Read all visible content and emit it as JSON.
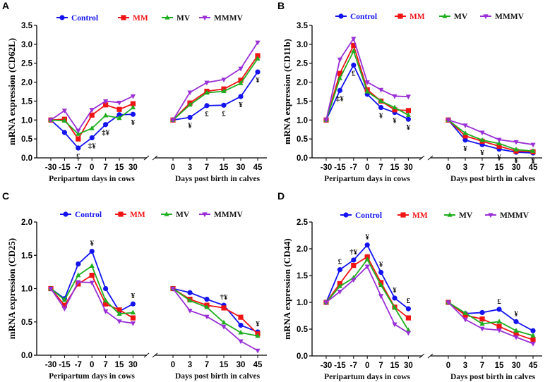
{
  "colors": {
    "Control": "#1414f0",
    "MM": "#f01414",
    "MV": "#1fae1f",
    "MMMV": "#9a2fd6",
    "annotation": "#111111"
  },
  "legend": [
    {
      "name": "Control",
      "marker": "circle"
    },
    {
      "name": "MM",
      "marker": "square"
    },
    {
      "name": "MV",
      "marker": "triangle-up"
    },
    {
      "name": "MMMV",
      "marker": "triangle-down"
    }
  ],
  "chart_data": [
    {
      "panel": "A",
      "type": "line",
      "ylabel": "mRNA expression (CD62L)",
      "ylim": [
        0,
        3.5
      ],
      "yticks": [
        0.0,
        0.5,
        1.0,
        1.5,
        2.0,
        2.5,
        3.0,
        3.5
      ],
      "cows": {
        "xlabel": "Peripartum days in cows",
        "categories": [
          "-30",
          "-15",
          "-7",
          "0",
          "7",
          "15",
          "30"
        ]
      },
      "calves": {
        "xlabel": "Days post birth in calves",
        "categories": [
          "0",
          "3",
          "7",
          "15",
          "30",
          "45"
        ]
      },
      "series": [
        {
          "name": "Control",
          "cows": [
            1.0,
            0.67,
            0.26,
            0.53,
            0.88,
            1.14,
            1.15
          ],
          "calves": [
            1.0,
            1.07,
            1.38,
            1.39,
            1.62,
            2.27
          ]
        },
        {
          "name": "MM",
          "cows": [
            1.0,
            1.02,
            0.5,
            1.13,
            1.4,
            1.28,
            1.43
          ],
          "calves": [
            1.0,
            1.45,
            1.76,
            1.82,
            2.05,
            2.7
          ]
        },
        {
          "name": "MV",
          "cows": [
            1.0,
            0.98,
            0.63,
            0.78,
            1.12,
            1.05,
            1.33
          ],
          "calves": [
            1.0,
            1.4,
            1.72,
            1.76,
            1.97,
            2.62
          ]
        },
        {
          "name": "MMMV",
          "cows": [
            1.0,
            1.25,
            0.72,
            1.27,
            1.5,
            1.46,
            1.63
          ],
          "calves": [
            1.0,
            1.73,
            1.99,
            2.07,
            2.36,
            3.05
          ]
        }
      ],
      "annotations": [
        {
          "group": "cows",
          "x": "-7",
          "text": "£",
          "pos": "below",
          "y": 0.26
        },
        {
          "group": "cows",
          "x": "0",
          "text": "‡¥",
          "pos": "below",
          "y": 0.53
        },
        {
          "group": "cows",
          "x": "7",
          "text": "‡¥",
          "pos": "below",
          "y": 0.88
        },
        {
          "group": "cows",
          "x": "30",
          "text": "¥",
          "pos": "below",
          "y": 1.15
        },
        {
          "group": "calves",
          "x": "3",
          "text": "¥",
          "pos": "below",
          "y": 1.07
        },
        {
          "group": "calves",
          "x": "7",
          "text": "£",
          "pos": "below",
          "y": 1.38
        },
        {
          "group": "calves",
          "x": "15",
          "text": "£",
          "pos": "below",
          "y": 1.39
        },
        {
          "group": "calves",
          "x": "30",
          "text": "¥",
          "pos": "below",
          "y": 1.62
        },
        {
          "group": "calves",
          "x": "45",
          "text": "¥",
          "pos": "below",
          "y": 2.27
        }
      ]
    },
    {
      "panel": "B",
      "type": "line",
      "ylabel": "mRNA expression (CD11b)",
      "ylim": [
        0,
        3.5
      ],
      "yticks": [
        0.0,
        0.5,
        1.0,
        1.5,
        2.0,
        2.5,
        3.0,
        3.5
      ],
      "cows": {
        "xlabel": "Peripartum days in cows",
        "categories": [
          "-30",
          "-15",
          "-7",
          "0",
          "7",
          "15",
          "30"
        ]
      },
      "calves": {
        "xlabel": "Days post birth in calves",
        "categories": [
          "0",
          "3",
          "7",
          "15",
          "30",
          "45"
        ]
      },
      "series": [
        {
          "name": "Control",
          "cows": [
            1.0,
            1.78,
            2.45,
            1.68,
            1.33,
            1.2,
            1.02
          ],
          "calves": [
            1.0,
            0.47,
            0.35,
            0.23,
            0.15,
            0.13
          ]
        },
        {
          "name": "MM",
          "cows": [
            1.0,
            2.23,
            2.97,
            1.8,
            1.5,
            1.27,
            1.25
          ],
          "calves": [
            1.0,
            0.58,
            0.44,
            0.31,
            0.18,
            0.16
          ]
        },
        {
          "name": "MV",
          "cows": [
            1.0,
            2.1,
            2.82,
            1.75,
            1.5,
            1.33,
            1.13
          ],
          "calves": [
            1.0,
            0.65,
            0.47,
            0.38,
            0.22,
            0.18
          ]
        },
        {
          "name": "MMMV",
          "cows": [
            1.0,
            2.6,
            3.15,
            2.0,
            1.8,
            1.63,
            1.62
          ],
          "calves": [
            1.0,
            0.86,
            0.67,
            0.48,
            0.42,
            0.35
          ]
        }
      ],
      "annotations": [
        {
          "group": "cows",
          "x": "-15",
          "text": "‡¥",
          "pos": "below",
          "y": 1.78
        },
        {
          "group": "cows",
          "x": "-7",
          "text": "£",
          "pos": "below",
          "y": 2.45
        },
        {
          "group": "cows",
          "x": "7",
          "text": "¥",
          "pos": "below",
          "y": 1.33
        },
        {
          "group": "cows",
          "x": "15",
          "text": "¥",
          "pos": "below",
          "y": 1.2
        },
        {
          "group": "cows",
          "x": "30",
          "text": "¥",
          "pos": "below",
          "y": 1.02
        },
        {
          "group": "calves",
          "x": "3",
          "text": "¥",
          "pos": "below",
          "y": 0.47
        },
        {
          "group": "calves",
          "x": "7",
          "text": "¥",
          "pos": "below",
          "y": 0.35
        },
        {
          "group": "calves",
          "x": "15",
          "text": "¥",
          "pos": "below",
          "y": 0.23
        },
        {
          "group": "calves",
          "x": "30",
          "text": "¥",
          "pos": "below",
          "y": 0.15
        },
        {
          "group": "calves",
          "x": "45",
          "text": "¥",
          "pos": "below",
          "y": 0.13
        }
      ]
    },
    {
      "panel": "C",
      "type": "line",
      "ylabel": "mRNA expression (CD25)",
      "ylim": [
        0,
        2.0
      ],
      "yticks": [
        0.0,
        0.5,
        1.0,
        1.5,
        2.0
      ],
      "cows": {
        "xlabel": "Peripartum days in cows",
        "categories": [
          "-30",
          "-15",
          "-7",
          "0",
          "7",
          "15",
          "30"
        ]
      },
      "calves": {
        "xlabel": "Days post birth in calves",
        "categories": [
          "0",
          "3",
          "7",
          "15",
          "30",
          "45"
        ]
      },
      "series": [
        {
          "name": "Control",
          "cows": [
            1.0,
            0.85,
            1.37,
            1.56,
            1.0,
            0.66,
            0.77
          ],
          "calves": [
            1.0,
            0.94,
            0.84,
            0.75,
            0.45,
            0.35
          ]
        },
        {
          "name": "MM",
          "cows": [
            1.0,
            0.75,
            1.07,
            1.2,
            0.77,
            0.68,
            0.56
          ],
          "calves": [
            1.0,
            0.84,
            0.75,
            0.71,
            0.57,
            0.32
          ]
        },
        {
          "name": "MV",
          "cows": [
            1.0,
            0.83,
            1.2,
            1.34,
            0.82,
            0.62,
            0.64
          ],
          "calves": [
            1.0,
            0.82,
            0.72,
            0.49,
            0.34,
            0.29
          ]
        },
        {
          "name": "MMMV",
          "cows": [
            1.0,
            0.7,
            1.1,
            1.09,
            0.66,
            0.51,
            0.48
          ],
          "calves": [
            1.0,
            0.67,
            0.58,
            0.43,
            0.21,
            0.07
          ]
        }
      ],
      "annotations": [
        {
          "group": "cows",
          "x": "0",
          "text": "¥",
          "pos": "above",
          "y": 1.56
        },
        {
          "group": "cows",
          "x": "30",
          "text": "¥",
          "pos": "above",
          "y": 0.77
        },
        {
          "group": "calves",
          "x": "15",
          "text": "†¥",
          "pos": "above",
          "y": 0.75
        },
        {
          "group": "calves",
          "x": "45",
          "text": "¥",
          "pos": "above",
          "y": 0.35
        }
      ]
    },
    {
      "panel": "D",
      "type": "line",
      "ylabel": "mRNA expression (CD44)",
      "ylim": [
        0,
        2.5
      ],
      "yticks": [
        0.0,
        0.5,
        1.0,
        1.5,
        2.0,
        2.5
      ],
      "cows": {
        "xlabel": "Peripartum days in cows",
        "categories": [
          "-30",
          "-15",
          "-7",
          "0",
          "7",
          "15",
          "30"
        ]
      },
      "calves": {
        "xlabel": "Days post birth in calves",
        "categories": [
          "0",
          "3",
          "7",
          "15",
          "30",
          "45"
        ]
      },
      "series": [
        {
          "name": "Control",
          "cows": [
            1.0,
            1.61,
            1.79,
            2.07,
            1.56,
            1.08,
            0.88
          ],
          "calves": [
            1.0,
            0.79,
            0.81,
            0.87,
            0.64,
            0.47
          ]
        },
        {
          "name": "MM",
          "cows": [
            1.0,
            1.35,
            1.69,
            1.85,
            1.37,
            0.91,
            0.71
          ],
          "calves": [
            1.0,
            0.76,
            0.69,
            0.55,
            0.41,
            0.3
          ]
        },
        {
          "name": "MV",
          "cows": [
            1.0,
            1.3,
            1.46,
            1.8,
            1.32,
            0.9,
            0.48
          ],
          "calves": [
            1.0,
            0.8,
            0.6,
            0.64,
            0.47,
            0.38
          ]
        },
        {
          "name": "MMMV",
          "cows": [
            1.0,
            1.2,
            1.42,
            1.67,
            1.12,
            0.59,
            0.43
          ],
          "calves": [
            1.0,
            0.68,
            0.51,
            0.48,
            0.35,
            0.23
          ]
        }
      ],
      "annotations": [
        {
          "group": "cows",
          "x": "-15",
          "text": "£",
          "pos": "above",
          "y": 1.61
        },
        {
          "group": "cows",
          "x": "-7",
          "text": "†¥",
          "pos": "above",
          "y": 1.79
        },
        {
          "group": "cows",
          "x": "0",
          "text": "¥",
          "pos": "above",
          "y": 2.07
        },
        {
          "group": "cows",
          "x": "7",
          "text": "¥",
          "pos": "above",
          "y": 1.56
        },
        {
          "group": "cows",
          "x": "15",
          "text": "¥",
          "pos": "above",
          "y": 1.08
        },
        {
          "group": "cows",
          "x": "30",
          "text": "£",
          "pos": "above",
          "y": 0.88
        },
        {
          "group": "calves",
          "x": "15",
          "text": "£",
          "pos": "above",
          "y": 0.87
        },
        {
          "group": "calves",
          "x": "30",
          "text": "¥",
          "pos": "above",
          "y": 0.64
        }
      ]
    }
  ]
}
